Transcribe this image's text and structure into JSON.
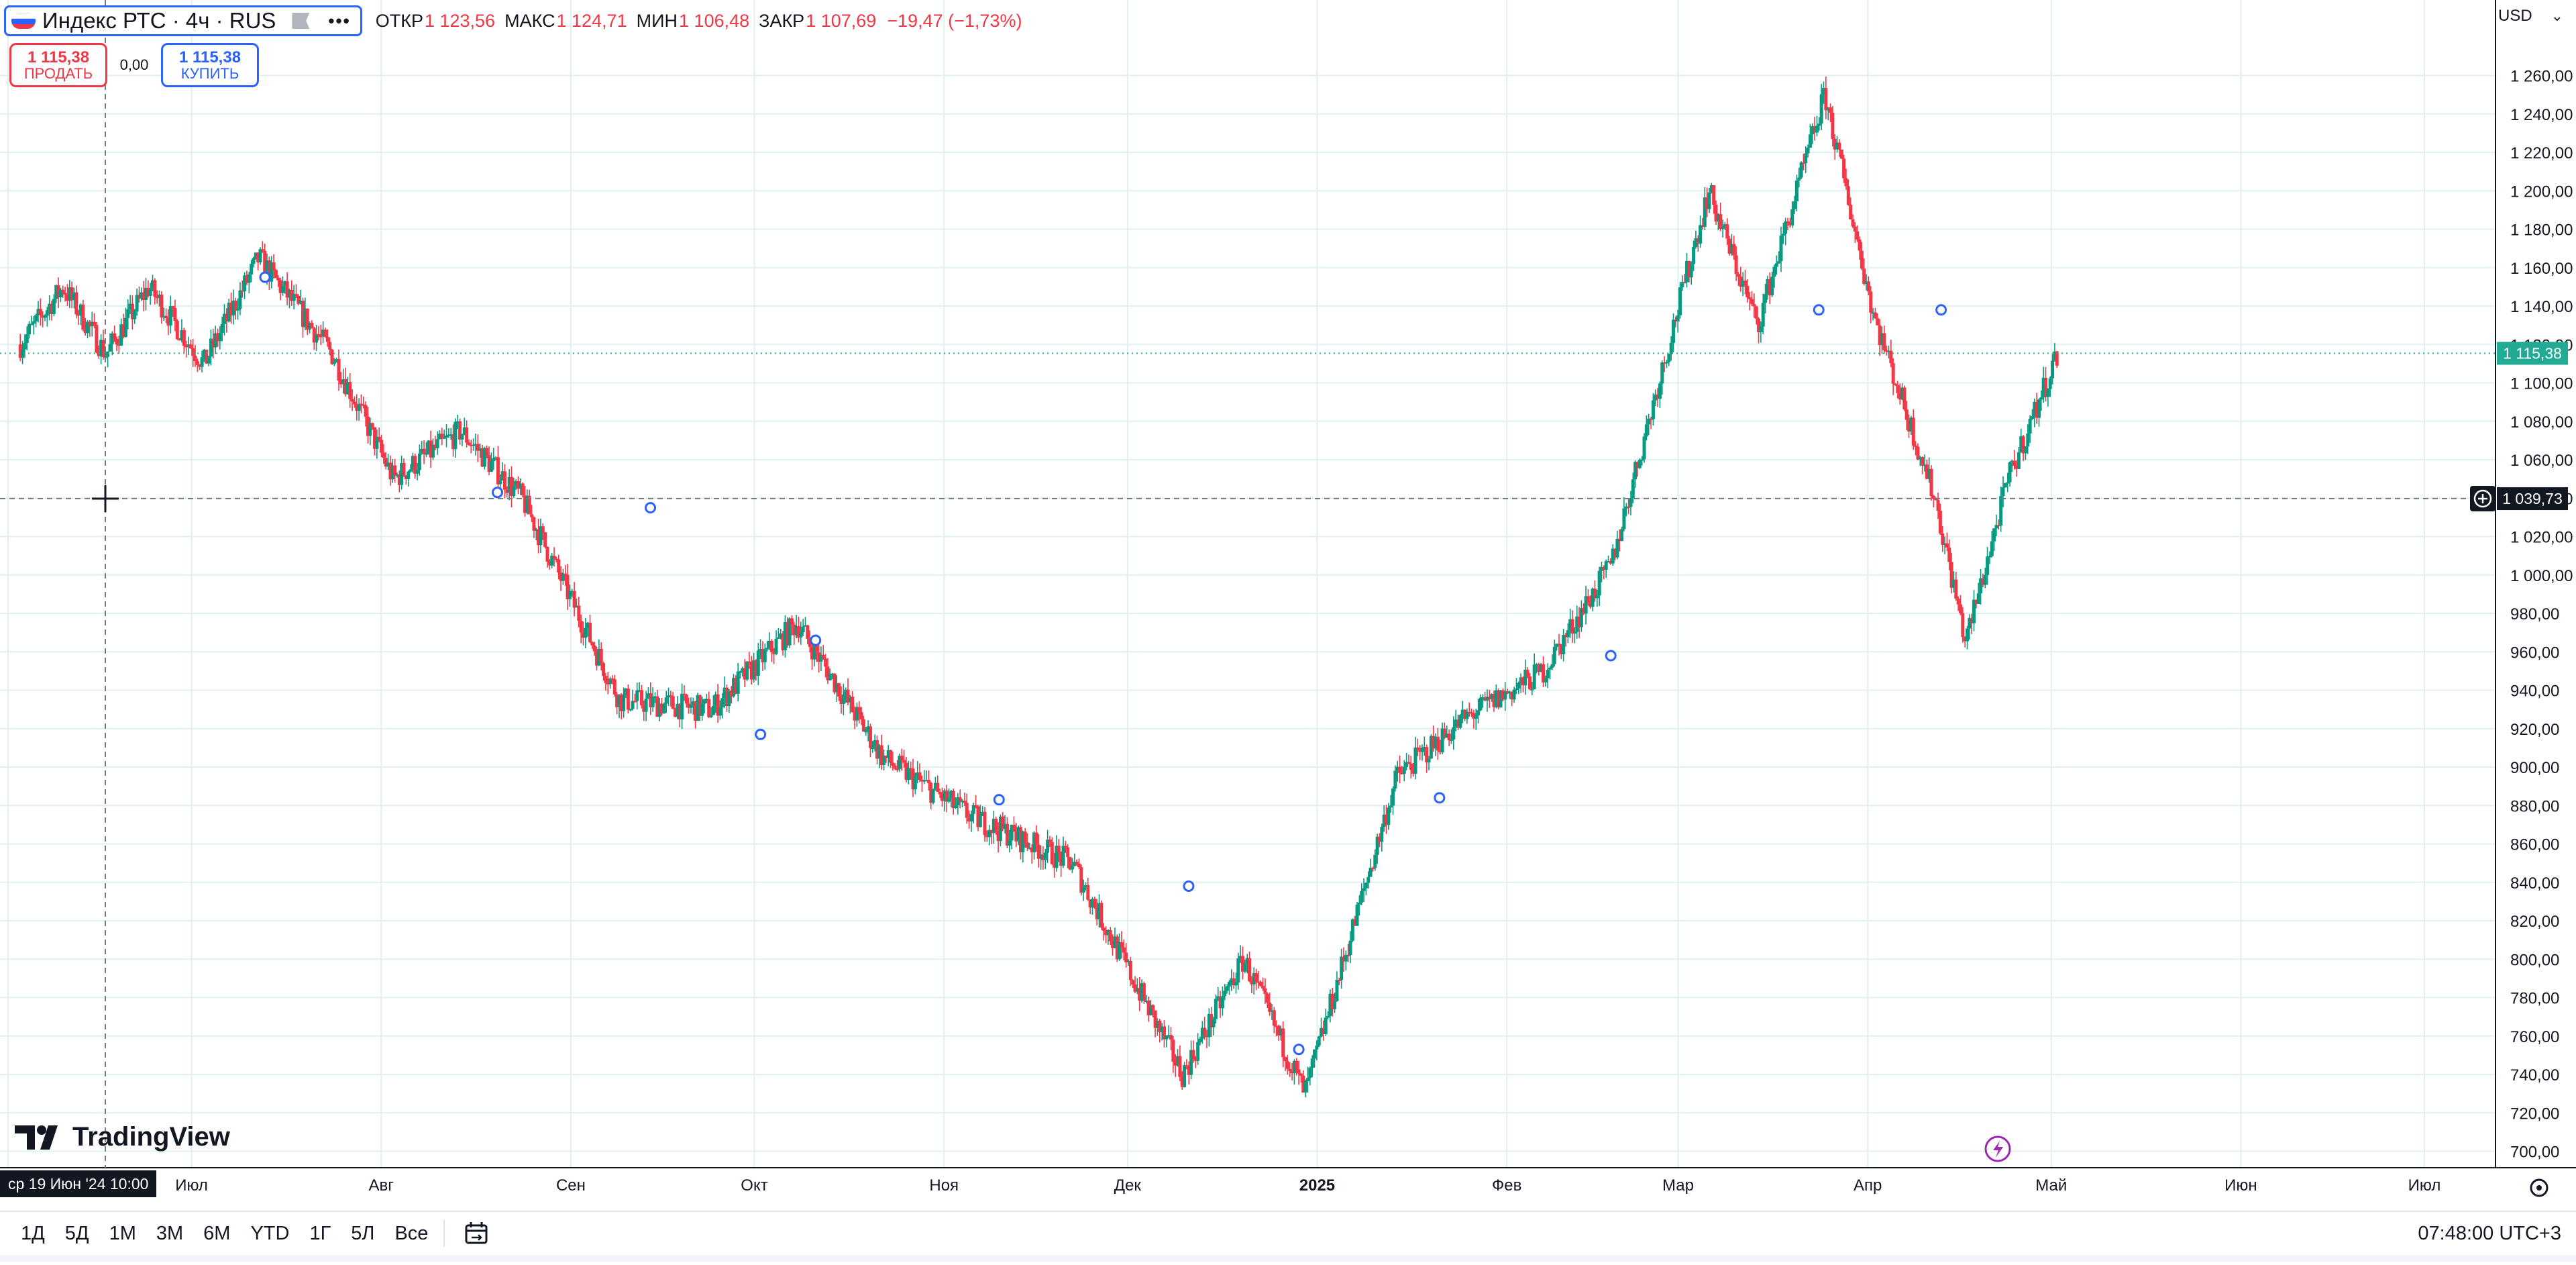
{
  "legend": {
    "title": "Индекс РТС · 4ч · RUS",
    "ohlc": [
      {
        "label": "ОТКР",
        "value": "1 123,56"
      },
      {
        "label": "МАКС",
        "value": "1 124,71"
      },
      {
        "label": "МИН",
        "value": "1 106,48"
      },
      {
        "label": "ЗАКР",
        "value": "1 107,69"
      },
      {
        "label": "",
        "value": "−19,47 (−1,73%)"
      }
    ]
  },
  "trade": {
    "sell_price": "1 115,38",
    "sell_label": "ПРОДАТЬ",
    "spread": "0,00",
    "buy_price": "1 115,38",
    "buy_label": "КУПИТЬ"
  },
  "currency": "USD",
  "logo_text": "TradingView",
  "price_labels": {
    "last": "1 115,38",
    "crosshair": "1 039,73"
  },
  "crosshair_time": "ср 19 Июн '24   10:00",
  "periods": [
    "1Д",
    "5Д",
    "1М",
    "3М",
    "6М",
    "YTD",
    "1Г",
    "5Л",
    "Все"
  ],
  "clock": "07:48:00 UTC+3",
  "icons": {
    "flag": "russia-flag-icon",
    "more": "more-dots-icon",
    "calendar": "calendar-range-icon",
    "settings": "gear-icon",
    "crosshair": "crosshair-icon",
    "add_alert": "plus-circle-icon",
    "news": "lightning-icon"
  },
  "colors": {
    "up": "#089981",
    "down": "#f23645",
    "accent": "#2962ff",
    "grid": "#e0f0f0",
    "last_price": "#22ab94",
    "news": "#9c27b0"
  },
  "chart_data": {
    "type": "candlestick",
    "symbol": "Индекс РТС",
    "interval": "4ч",
    "y_range": [
      692,
      1272
    ],
    "y_ticks": [
      1260,
      1240,
      1220,
      1200,
      1180,
      1160,
      1140,
      1120,
      1100,
      1080,
      1060,
      1040,
      1020,
      1000,
      980,
      960,
      940,
      920,
      900,
      880,
      860,
      840,
      820,
      800,
      780,
      760,
      740,
      720,
      700
    ],
    "y_tick_labels": [
      "1 260,00",
      "1 240,00",
      "1 220,00",
      "1 200,00",
      "1 180,00",
      "1 160,00",
      "1 140,00",
      "1 120,00",
      "1 100,00",
      "1 080,00",
      "1 060,00",
      "1 040,00",
      "1 020,00",
      "1 000,00",
      "980,00",
      "960,00",
      "940,00",
      "920,00",
      "900,00",
      "880,00",
      "860,00",
      "840,00",
      "820,00",
      "800,00",
      "780,00",
      "760,00",
      "740,00",
      "720,00",
      "700,00"
    ],
    "x_ticks": [
      "Июн",
      "Июл",
      "Авг",
      "Сен",
      "Окт",
      "Ноя",
      "Дек",
      "2025",
      "Фев",
      "Мар",
      "Апр",
      "Май",
      "Июн",
      "Июл"
    ],
    "x_tick_dates": [
      "2024-06-01",
      "2024-07-01",
      "2024-08-01",
      "2024-09-01",
      "2024-10-01",
      "2024-11-01",
      "2024-12-01",
      "2025-01-01",
      "2025-02-01",
      "2025-03-01",
      "2025-04-01",
      "2025-05-01",
      "2025-06-01",
      "2025-07-01"
    ],
    "date_range": [
      "2024-06-01",
      "2025-07-15"
    ],
    "price_path": [
      [
        "2024-06-03",
        1120
      ],
      [
        "2024-06-10",
        1150
      ],
      [
        "2024-06-17",
        1115
      ],
      [
        "2024-06-24",
        1150
      ],
      [
        "2024-07-03",
        1110
      ],
      [
        "2024-07-12",
        1165
      ],
      [
        "2024-07-24",
        1115
      ],
      [
        "2024-08-03",
        1050
      ],
      [
        "2024-08-14",
        1075
      ],
      [
        "2024-08-24",
        1040
      ],
      [
        "2024-09-09",
        935
      ],
      [
        "2024-09-24",
        930
      ],
      [
        "2024-10-08",
        975
      ],
      [
        "2024-10-22",
        905
      ],
      [
        "2024-11-05",
        875
      ],
      [
        "2024-11-22",
        850
      ],
      [
        "2024-12-10",
        740
      ],
      [
        "2024-12-20",
        800
      ],
      [
        "2024-12-30",
        730
      ],
      [
        "2025-01-14",
        895
      ],
      [
        "2025-01-25",
        925
      ],
      [
        "2025-02-07",
        950
      ],
      [
        "2025-02-18",
        1005
      ],
      [
        "2025-03-06",
        1200
      ],
      [
        "2025-03-14",
        1130
      ],
      [
        "2025-03-25",
        1250
      ],
      [
        "2025-04-02",
        1135
      ],
      [
        "2025-04-12",
        1040
      ],
      [
        "2025-04-17",
        965
      ],
      [
        "2025-04-24",
        1050
      ],
      [
        "2025-05-02",
        1115
      ]
    ],
    "last_price": 1115.38,
    "crosshair_price": 1039.73,
    "dividend_markers": [
      [
        "2024-07-13",
        1155
      ],
      [
        "2024-08-20",
        1043
      ],
      [
        "2024-09-14",
        1035
      ],
      [
        "2024-10-02",
        917
      ],
      [
        "2024-10-11",
        966
      ],
      [
        "2024-11-10",
        883
      ],
      [
        "2024-12-11",
        838
      ],
      [
        "2024-12-29",
        753
      ],
      [
        "2025-01-21",
        884
      ],
      [
        "2025-02-18",
        958
      ],
      [
        "2025-03-24",
        1138
      ],
      [
        "2025-04-13",
        1138
      ]
    ]
  }
}
